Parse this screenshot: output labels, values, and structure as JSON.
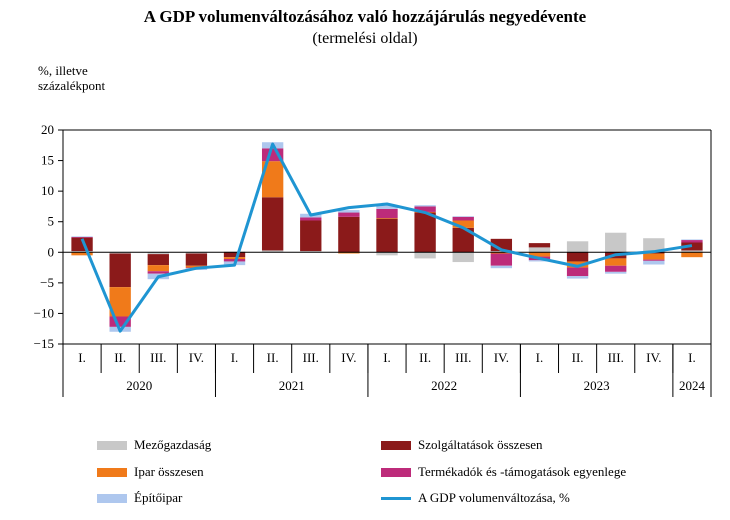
{
  "title": "A GDP volumenváltozásához való hozzájárulás negyedévente",
  "subtitle": "(termelési oldal)",
  "unit_line1": "%, illetve",
  "unit_line2": "százalékpont",
  "chart_data": {
    "type": "bar",
    "stacked": true,
    "title": "A GDP volumenváltozásához való hozzájárulás negyedévente",
    "subtitle": "(termelési oldal)",
    "ylabel": "%, illetve százalékpont",
    "ylim": [
      -15,
      20
    ],
    "yticks": [
      -15,
      -10,
      -5,
      0,
      5,
      10,
      15,
      20
    ],
    "grid": false,
    "legend_position": "bottom",
    "categories": [
      "I.",
      "II.",
      "III.",
      "IV.",
      "I.",
      "II.",
      "III.",
      "IV.",
      "I.",
      "II.",
      "III.",
      "IV.",
      "I.",
      "II.",
      "III.",
      "IV.",
      "I."
    ],
    "years": [
      {
        "label": "2020",
        "quarters": 4
      },
      {
        "label": "2021",
        "quarters": 4
      },
      {
        "label": "2022",
        "quarters": 4
      },
      {
        "label": "2023",
        "quarters": 4
      },
      {
        "label": "2024",
        "quarters": 1
      }
    ],
    "series": [
      {
        "name": "Mezőgazdaság",
        "color": "#c8c8c8",
        "values": [
          0.2,
          -0.2,
          -0.3,
          -0.2,
          0.1,
          0.3,
          0.2,
          0.0,
          -0.5,
          -1.0,
          -1.6,
          0.2,
          0.8,
          1.8,
          3.2,
          2.3,
          0.3
        ]
      },
      {
        "name": "Szolgáltatások összesen",
        "color": "#8b1a1a",
        "values": [
          2.2,
          -5.5,
          -1.8,
          -2.0,
          -0.8,
          8.7,
          5.0,
          5.8,
          5.5,
          6.5,
          4.0,
          2.0,
          0.7,
          -1.5,
          -1.0,
          -0.2,
          1.3
        ]
      },
      {
        "name": "Ipar összesen",
        "color": "#f07a1a",
        "values": [
          -0.5,
          -4.8,
          -1.0,
          -0.3,
          -0.3,
          5.9,
          0.0,
          -0.2,
          0.1,
          0.1,
          1.2,
          -0.2,
          -0.7,
          -1.0,
          -1.2,
          -1.0,
          -0.8
        ]
      },
      {
        "name": "Termékadók és -támogatások egyenlege",
        "color": "#bd2b7a",
        "values": [
          0.1,
          -1.7,
          -0.4,
          -0.1,
          -0.4,
          2.1,
          0.5,
          0.7,
          1.5,
          0.9,
          0.6,
          -2.0,
          -0.6,
          -1.4,
          -1.0,
          -0.2,
          0.4
        ]
      },
      {
        "name": "Építőipar",
        "color": "#aec7ee",
        "values": [
          0.1,
          -0.8,
          -0.9,
          -0.3,
          -0.6,
          1.0,
          0.6,
          0.4,
          0.6,
          0.2,
          0.1,
          -0.4,
          -0.2,
          -0.4,
          -0.3,
          -0.6,
          0.1
        ]
      }
    ],
    "line_series": {
      "name": "A GDP volumenváltozása, %",
      "color": "#1f95d2",
      "values": [
        2.2,
        -12.9,
        -4.0,
        -2.6,
        -2.1,
        17.7,
        6.1,
        7.3,
        7.9,
        6.5,
        4.0,
        0.4,
        -1.0,
        -2.3,
        -0.4,
        0.1,
        1.1
      ]
    }
  },
  "legend": [
    {
      "name": "Mezőgazdaság",
      "color": "#c8c8c8",
      "kind": "bar"
    },
    {
      "name": "Szolgáltatások összesen",
      "color": "#8b1a1a",
      "kind": "bar"
    },
    {
      "name": "Ipar összesen",
      "color": "#f07a1a",
      "kind": "bar"
    },
    {
      "name": "Termékadók és -támogatások egyenlege",
      "color": "#bd2b7a",
      "kind": "bar"
    },
    {
      "name": "Építőipar",
      "color": "#aec7ee",
      "kind": "bar"
    },
    {
      "name": "A GDP volumenváltozása, %",
      "color": "#1f95d2",
      "kind": "line"
    }
  ]
}
